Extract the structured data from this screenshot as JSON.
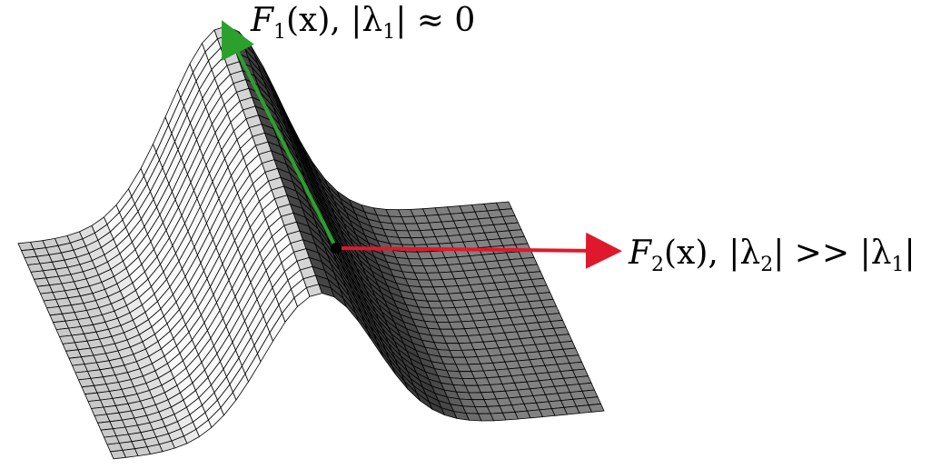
{
  "figure": {
    "surface": {
      "name": "ridge-surface",
      "fill_light": "#f4f4f4",
      "fill_dark": "#4a4a4a",
      "mesh_color": "#000000"
    },
    "vectors": [
      {
        "id": "F1",
        "color": "#2ca02c",
        "label": {
          "F": "F",
          "sub": "1",
          "rest": "(x), |λ",
          "sub2": "1",
          "tail": "| ≈ 0"
        }
      },
      {
        "id": "F2",
        "color": "#e0182b",
        "label": {
          "F": "F",
          "sub": "2",
          "rest": "(x), |λ",
          "sub2": "2",
          "tail": "| >> |λ",
          "sub3": "1",
          "end": "|"
        }
      }
    ],
    "point_color": "#000000"
  }
}
